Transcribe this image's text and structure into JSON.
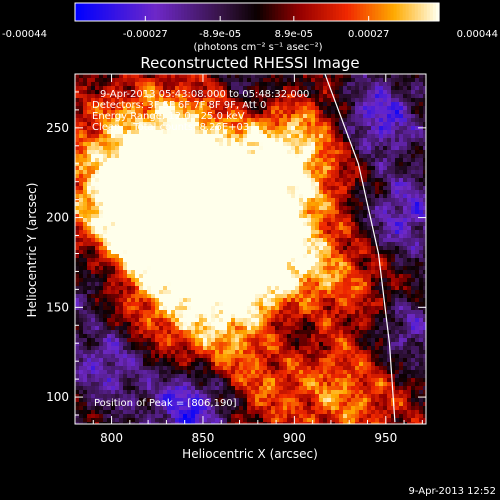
{
  "chart_data": {
    "type": "heatmap",
    "title": "Reconstructed RHESSI Image",
    "xlabel": "Heliocentric X (arcsec)",
    "ylabel": "Heliocentric Y (arcsec)",
    "xlim": [
      780,
      972
    ],
    "ylim": [
      85,
      280
    ],
    "x_ticks": [
      800,
      850,
      900,
      950
    ],
    "y_ticks": [
      100,
      150,
      200,
      250
    ],
    "colorbar": {
      "range": [
        -0.00044,
        0.00044
      ],
      "tick_values": [
        -0.00044,
        -0.00027,
        -8.9e-05,
        8.9e-05,
        0.00027,
        0.00044
      ],
      "tick_labels": [
        "-0.00044",
        "-0.00027",
        "-8.9e-05",
        "8.9e-05",
        "0.00027",
        "0.00044"
      ],
      "unit_label": "(photons cm⁻² s⁻¹ asec⁻²)"
    },
    "annotations": {
      "time_range": "9-Apr-2013 05:43:08.000 to 05:48:32.000",
      "detectors": "Detectors: 3F 5F 6F 7F 8F 9F, Att 0",
      "energy": "Energy Range: 12.0 - 25.0 keV",
      "method": "Clean    Total counts: 8.26E+03",
      "peak": "Position of Peak = [806,190]"
    },
    "limb": {
      "points": [
        [
          916,
          282
        ],
        [
          935,
          230
        ],
        [
          946,
          180
        ],
        [
          952,
          130
        ],
        [
          955,
          86
        ]
      ]
    },
    "peak": [
      806,
      190
    ],
    "hot_regions": [
      {
        "x": 808,
        "y": 205,
        "weight": 1.0
      },
      {
        "x": 825,
        "y": 195,
        "weight": 0.95
      },
      {
        "x": 862,
        "y": 210,
        "weight": 0.9
      },
      {
        "x": 855,
        "y": 180,
        "weight": 0.85
      },
      {
        "x": 880,
        "y": 200,
        "weight": 0.85
      },
      {
        "x": 840,
        "y": 235,
        "weight": 0.75
      },
      {
        "x": 870,
        "y": 160,
        "weight": 0.7
      },
      {
        "x": 905,
        "y": 235,
        "weight": 0.65
      },
      {
        "x": 900,
        "y": 175,
        "weight": 0.6
      },
      {
        "x": 890,
        "y": 250,
        "weight": 0.55
      },
      {
        "x": 930,
        "y": 160,
        "weight": 0.45
      },
      {
        "x": 920,
        "y": 110,
        "weight": 0.45
      },
      {
        "x": 820,
        "y": 150,
        "weight": 0.55
      },
      {
        "x": 860,
        "y": 130,
        "weight": 0.45
      },
      {
        "x": 830,
        "y": 255,
        "weight": 0.5
      },
      {
        "x": 795,
        "y": 240,
        "weight": 0.5
      },
      {
        "x": 940,
        "y": 95,
        "weight": 0.4
      },
      {
        "x": 880,
        "y": 100,
        "weight": 0.4
      }
    ],
    "cold_regions": [
      {
        "x": 845,
        "y": 95,
        "weight": 1.0
      },
      {
        "x": 800,
        "y": 120,
        "weight": 0.7
      },
      {
        "x": 945,
        "y": 255,
        "weight": 0.8
      },
      {
        "x": 960,
        "y": 200,
        "weight": 0.7
      },
      {
        "x": 960,
        "y": 135,
        "weight": 0.6
      },
      {
        "x": 880,
        "y": 270,
        "weight": 0.5
      },
      {
        "x": 790,
        "y": 165,
        "weight": 0.45
      },
      {
        "x": 900,
        "y": 140,
        "weight": 0.45
      }
    ]
  },
  "footer": {
    "date_stamp": "9-Apr-2013 12:52"
  }
}
